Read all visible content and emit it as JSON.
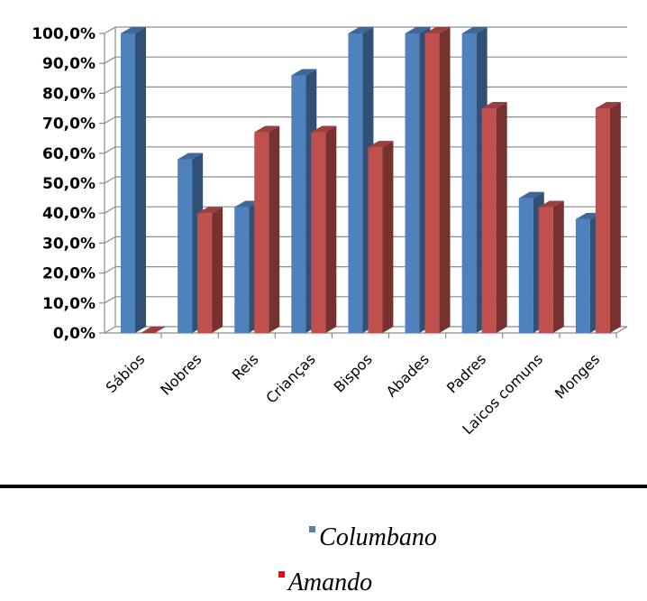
{
  "chart_data": {
    "type": "bar",
    "categories": [
      "Sábios",
      "Nobres",
      "Reis",
      "Crianças",
      "Bispos",
      "Abades",
      "Padres",
      "Laicos comuns",
      "Monges"
    ],
    "series": [
      {
        "name": "Columbano",
        "color": "#4F81BD",
        "values": [
          100,
          58,
          42,
          86,
          100,
          100,
          100,
          45,
          38
        ]
      },
      {
        "name": "Amando",
        "color": "#C0504D",
        "values": [
          0,
          40,
          67,
          67,
          62,
          100,
          75,
          42,
          75
        ]
      }
    ],
    "ylim": [
      0,
      100
    ],
    "yticks": [
      "0,0%",
      "10,0%",
      "20,0%",
      "30,0%",
      "40,0%",
      "50,0%",
      "60,0%",
      "70,0%",
      "80,0%",
      "90,0%",
      "100,0%"
    ],
    "grid": true,
    "legend_position": "bottom",
    "three_d": true
  }
}
